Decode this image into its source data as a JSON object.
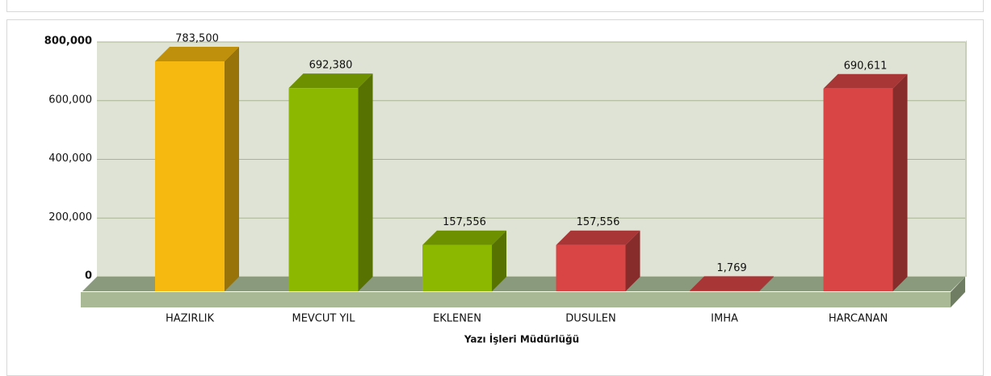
{
  "chart_data": {
    "type": "bar3d",
    "x_label": "Yazı İşleri Müdürlüğü",
    "categories": [
      "HAZIRLIK",
      "MEVCUT YIL",
      "EKLENEN",
      "DUSULEN",
      "IMHA",
      "HARCANAN"
    ],
    "values": [
      783500,
      692380,
      157556,
      157556,
      1769,
      690611
    ],
    "value_labels": [
      "783,500",
      "692,380",
      "157,556",
      "157,556",
      "1,769",
      "690,611"
    ],
    "colors": [
      "#f5b90f",
      "#8cb800",
      "#8cb800",
      "#d94545",
      "#d94545",
      "#d94545"
    ],
    "ylim": [
      0,
      800000
    ],
    "yticks": [
      0,
      {
        "value": 200000,
        "label": "200,000"
      },
      {
        "value": 400000,
        "label": "400,000"
      },
      {
        "value": 600000,
        "label": "600,000"
      },
      {
        "value": 800000,
        "label": "800,000"
      }
    ],
    "grid": true
  }
}
